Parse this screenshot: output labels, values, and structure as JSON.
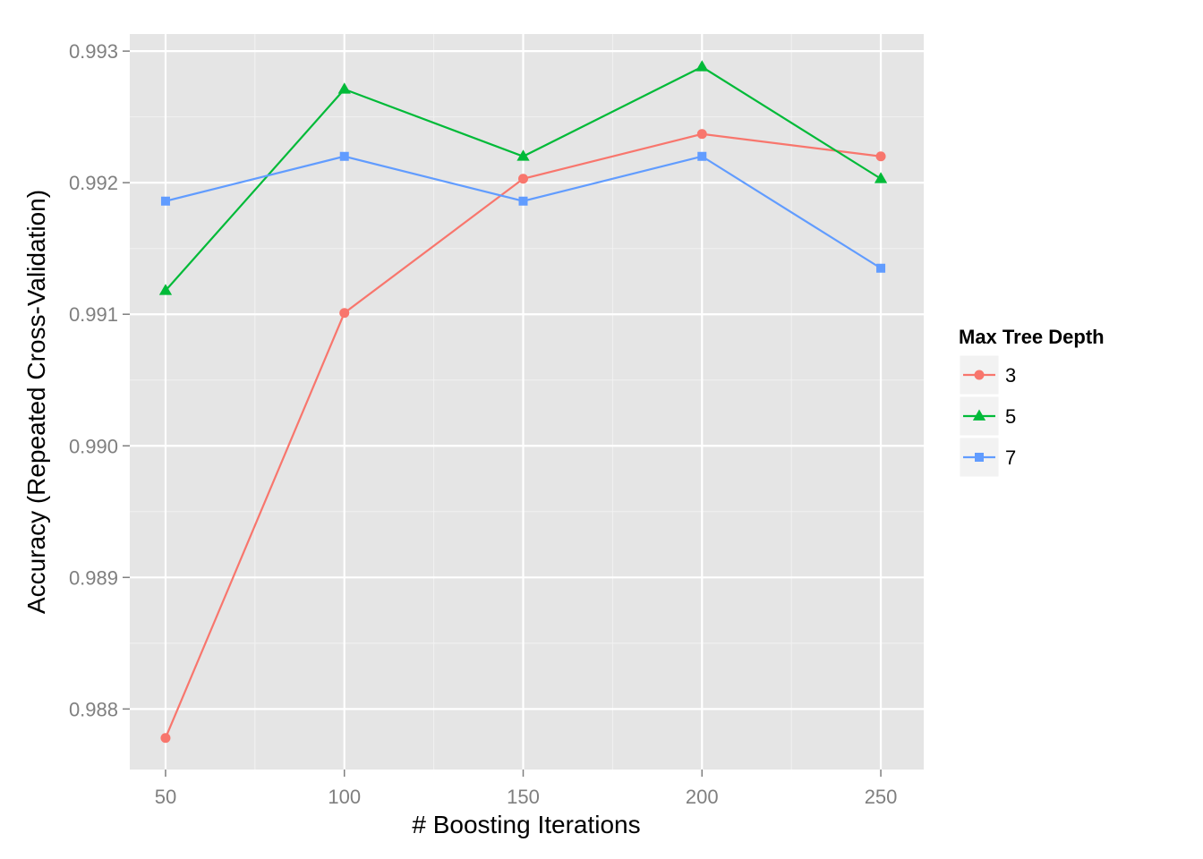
{
  "chart_data": {
    "type": "line",
    "xlabel": "# Boosting Iterations",
    "ylabel": "Accuracy (Repeated Cross-Validation)",
    "x": [
      50,
      100,
      150,
      200,
      250
    ],
    "xlim": [
      40,
      262
    ],
    "ylim": [
      0.98754,
      0.99313
    ],
    "x_ticks": [
      "50",
      "100",
      "150",
      "200",
      "250"
    ],
    "y_ticks": [
      "0.988",
      "0.989",
      "0.990",
      "0.991",
      "0.992",
      "0.993"
    ],
    "grid": true,
    "legend": {
      "title": "Max Tree Depth",
      "placement": "right"
    },
    "series": [
      {
        "name": "3",
        "color": "#F8766D",
        "marker": "circle",
        "values": [
          0.98778,
          0.99101,
          0.99203,
          0.99237,
          0.9922
        ]
      },
      {
        "name": "5",
        "color": "#00BA38",
        "marker": "triangle",
        "values": [
          0.99118,
          0.99271,
          0.9922,
          0.99288,
          0.99203
        ]
      },
      {
        "name": "7",
        "color": "#619CFF",
        "marker": "square",
        "values": [
          0.99186,
          0.9922,
          0.99186,
          0.9922,
          0.99135
        ]
      }
    ]
  }
}
